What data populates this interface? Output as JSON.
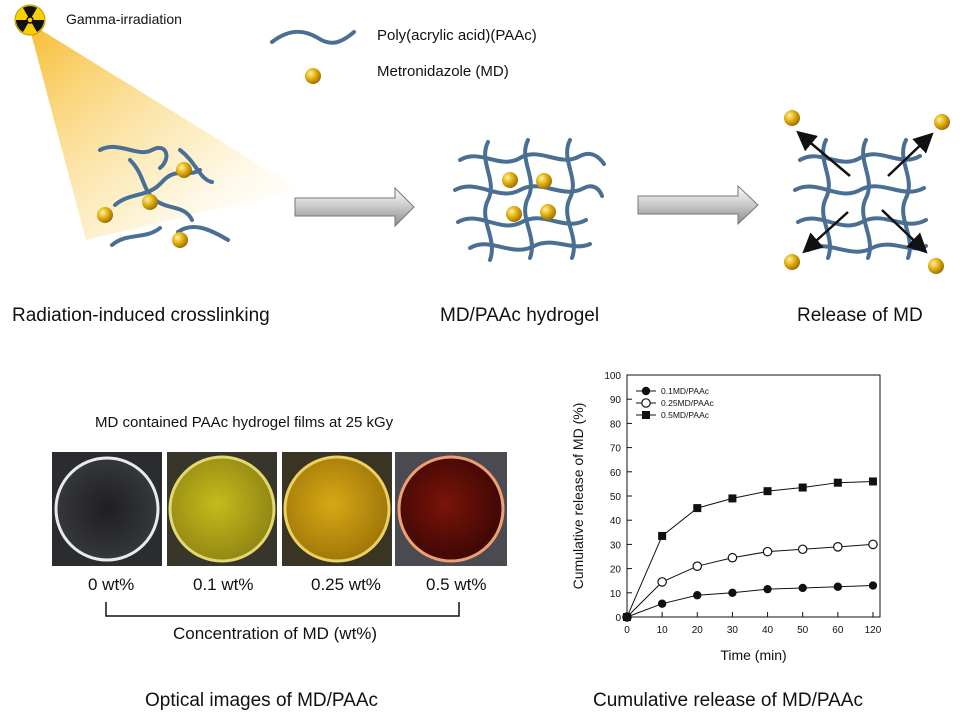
{
  "legend_top": {
    "radiation": "Gamma-irradiation",
    "polymer": "Poly(acrylic acid)(PAAc)",
    "drug": "Metronidazole  (MD)"
  },
  "steps": [
    {
      "label": "Radiation-induced  crosslinking"
    },
    {
      "label": "MD/PAAc hydrogel"
    },
    {
      "label": "Release of MD"
    }
  ],
  "optical": {
    "title": "MD contained PAAc hydrogel films at 25 kGy",
    "samples": [
      {
        "label": "0 wt%",
        "color": "#d8dde0"
      },
      {
        "label": "0.1 wt%",
        "color": "#c9c22a"
      },
      {
        "label": "0.25 wt%",
        "color": "#d4a81a"
      },
      {
        "label": "0.5 wt%",
        "color": "#8a1a0a"
      }
    ],
    "bracket_label": "Concentration of MD (wt%)",
    "caption": "Optical images of MD/PAAc"
  },
  "chart_caption": "Cumulative  release of MD/PAAc",
  "chart_data": {
    "type": "line",
    "xlabel": "Time (min)",
    "ylabel": "Cumulative release of MD (%)",
    "categories": [
      "0",
      "10",
      "20",
      "30",
      "40",
      "50",
      "60",
      "120"
    ],
    "ylim": [
      0,
      100
    ],
    "yticks": [
      "0",
      "10",
      "20",
      "30",
      "40",
      "50",
      "60",
      "70",
      "80",
      "90",
      "100"
    ],
    "legend_position": "top-left",
    "series": [
      {
        "name": "0.1MD/PAAc",
        "marker": "filled-circle",
        "values": [
          0,
          5.5,
          9,
          10,
          11.5,
          12,
          12.5,
          13
        ]
      },
      {
        "name": "0.25MD/PAAc",
        "marker": "open-circle",
        "values": [
          0,
          14.5,
          21,
          24.5,
          27,
          28,
          29,
          30
        ]
      },
      {
        "name": "0.5MD/PAAc",
        "marker": "filled-square",
        "values": [
          0,
          33.5,
          45,
          49,
          52,
          53.5,
          55.5,
          56
        ]
      }
    ]
  }
}
